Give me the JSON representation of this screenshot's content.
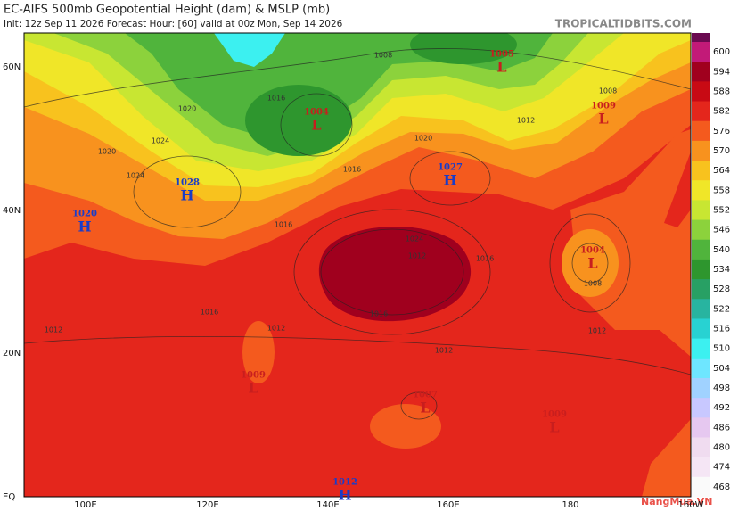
{
  "header": {
    "title": "EC-AIFS 500mb Geopotential Height (dam) & MSLP (mb)",
    "subtitle": "Init: 12z Sep 11 2026   Forecast Hour: [60]   valid at 00z Mon, Sep 14 2026",
    "site": "TROPICALTIDBITS.COM"
  },
  "axes": {
    "lat": [
      "60N",
      "40N",
      "20N",
      "EQ"
    ],
    "lon": [
      "100E",
      "120E",
      "140E",
      "160E",
      "180",
      "160W"
    ]
  },
  "legend": {
    "levels": [
      {
        "label": "600",
        "color": "#c21a78"
      },
      {
        "label": "594",
        "color": "#a0001e"
      },
      {
        "label": "588",
        "color": "#c80a14"
      },
      {
        "label": "582",
        "color": "#e4261c"
      },
      {
        "label": "576",
        "color": "#f45a1e"
      },
      {
        "label": "570",
        "color": "#f8921e"
      },
      {
        "label": "564",
        "color": "#f8c21e"
      },
      {
        "label": "558",
        "color": "#f0e628"
      },
      {
        "label": "552",
        "color": "#c8e632"
      },
      {
        "label": "546",
        "color": "#8cd23c"
      },
      {
        "label": "540",
        "color": "#50b43c"
      },
      {
        "label": "534",
        "color": "#2e962e"
      },
      {
        "label": "528",
        "color": "#28a064"
      },
      {
        "label": "522",
        "color": "#28b4a0"
      },
      {
        "label": "516",
        "color": "#28d2d2"
      },
      {
        "label": "510",
        "color": "#3cf0f0"
      },
      {
        "label": "504",
        "color": "#6ee6ff"
      },
      {
        "label": "498",
        "color": "#a0d2ff"
      },
      {
        "label": "492",
        "color": "#c8c8ff"
      },
      {
        "label": "486",
        "color": "#e6c8f0"
      },
      {
        "label": "480",
        "color": "#f0dcf0"
      },
      {
        "label": "474",
        "color": "#f5e6f5"
      },
      {
        "label": "468",
        "color": "#fafafa"
      }
    ]
  },
  "centers": [
    {
      "value": "1028",
      "letter": "H"
    },
    {
      "value": "1020",
      "letter": "H"
    },
    {
      "value": "1027",
      "letter": "H"
    },
    {
      "value": "1012",
      "letter": "H"
    },
    {
      "value": "1005",
      "letter": "L"
    },
    {
      "value": "1009",
      "letter": "L"
    },
    {
      "value": "1004",
      "letter": "L"
    },
    {
      "value": "1004",
      "letter": "L"
    },
    {
      "value": "1009",
      "letter": "L"
    },
    {
      "value": "1007",
      "letter": "L"
    },
    {
      "value": "1009",
      "letter": "L"
    }
  ],
  "isobar_labels": [
    "1008",
    "1016",
    "1020",
    "1024",
    "1016",
    "1012",
    "1024",
    "1016",
    "1012",
    "1020",
    "1016",
    "1012",
    "1008",
    "1016",
    "1012",
    "1012",
    "1012",
    "1008",
    "1024",
    "1020",
    "1016"
  ],
  "watermark": "NangMua.VN"
}
